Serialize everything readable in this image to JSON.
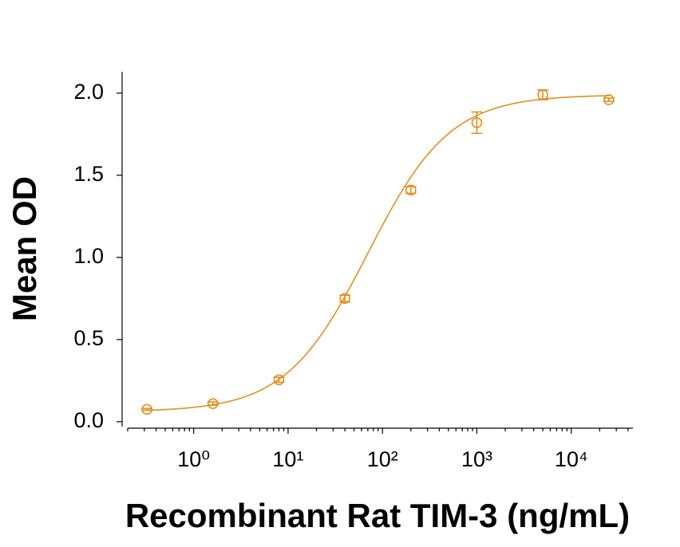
{
  "chart_data": {
    "type": "scatter",
    "xlabel": "Recombinant Rat TIM-3 (ng/mL)",
    "ylabel": "Mean OD",
    "x": [
      0.32,
      1.6,
      8,
      40,
      200,
      1000,
      5000,
      25000
    ],
    "series": [
      {
        "color": "#e0901f",
        "values": [
          0.075,
          0.11,
          0.255,
          0.75,
          1.41,
          1.82,
          1.99,
          1.96
        ],
        "errors": [
          0.005,
          0.01,
          0.015,
          0.02,
          0.02,
          0.065,
          0.03,
          0.01
        ]
      }
    ],
    "fit": {
      "bottom": 0.06,
      "top": 1.99,
      "ec50": 70,
      "hill": 1.0
    },
    "xscale": "log",
    "xlim": [
      0.2,
      45000
    ],
    "ylim": [
      -0.03,
      2.13
    ],
    "xticks": [
      {
        "value": 1,
        "label": "10⁰"
      },
      {
        "value": 10,
        "label": "10¹"
      },
      {
        "value": 100,
        "label": "10²"
      },
      {
        "value": 1000,
        "label": "10³"
      },
      {
        "value": 10000,
        "label": "10⁴"
      }
    ],
    "yticks": [
      {
        "value": 0,
        "label": "0.0"
      },
      0.5,
      {
        "value": 1,
        "label": "1.0"
      },
      1.5,
      {
        "value": 2,
        "label": "2.0"
      }
    ]
  }
}
